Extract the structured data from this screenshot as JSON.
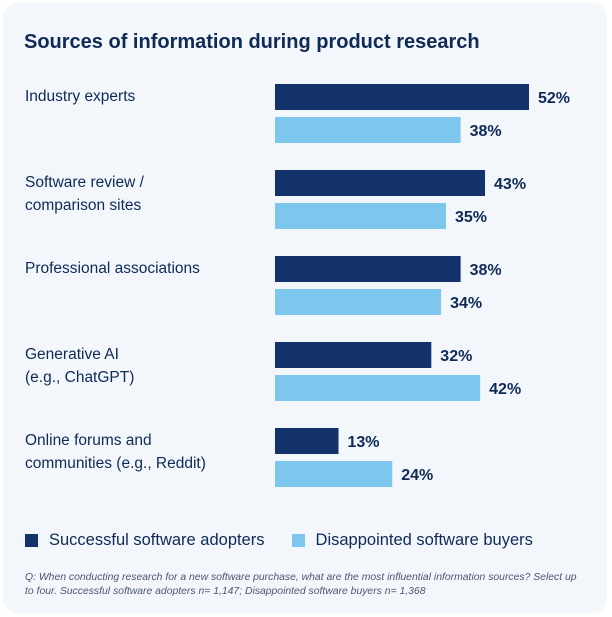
{
  "chart_data": {
    "type": "bar",
    "orientation": "horizontal",
    "title": "Sources of information during product research",
    "categories": [
      [
        "Industry experts"
      ],
      [
        "Software review /",
        "comparison sites"
      ],
      [
        "Professional associations"
      ],
      [
        "Generative AI",
        "(e.g., ChatGPT)"
      ],
      [
        "Online forums and",
        "communities (e.g., Reddit)"
      ]
    ],
    "series": [
      {
        "name": "Successful software adopters",
        "color": "#13326a",
        "values": [
          52,
          43,
          38,
          32,
          13
        ]
      },
      {
        "name": "Disappointed software buyers",
        "color": "#7dc6ee",
        "values": [
          38,
          35,
          34,
          42,
          24
        ]
      }
    ],
    "value_suffix": "%",
    "xlim": [
      0,
      52
    ],
    "legend_position": "bottom",
    "grid": false
  },
  "footnote": "Q: When conducting research for a new software purchase, what are the most influential information sources? Select up to four. Successful software adopters n= 1,147; Disappointed software buyers n= 1,368"
}
